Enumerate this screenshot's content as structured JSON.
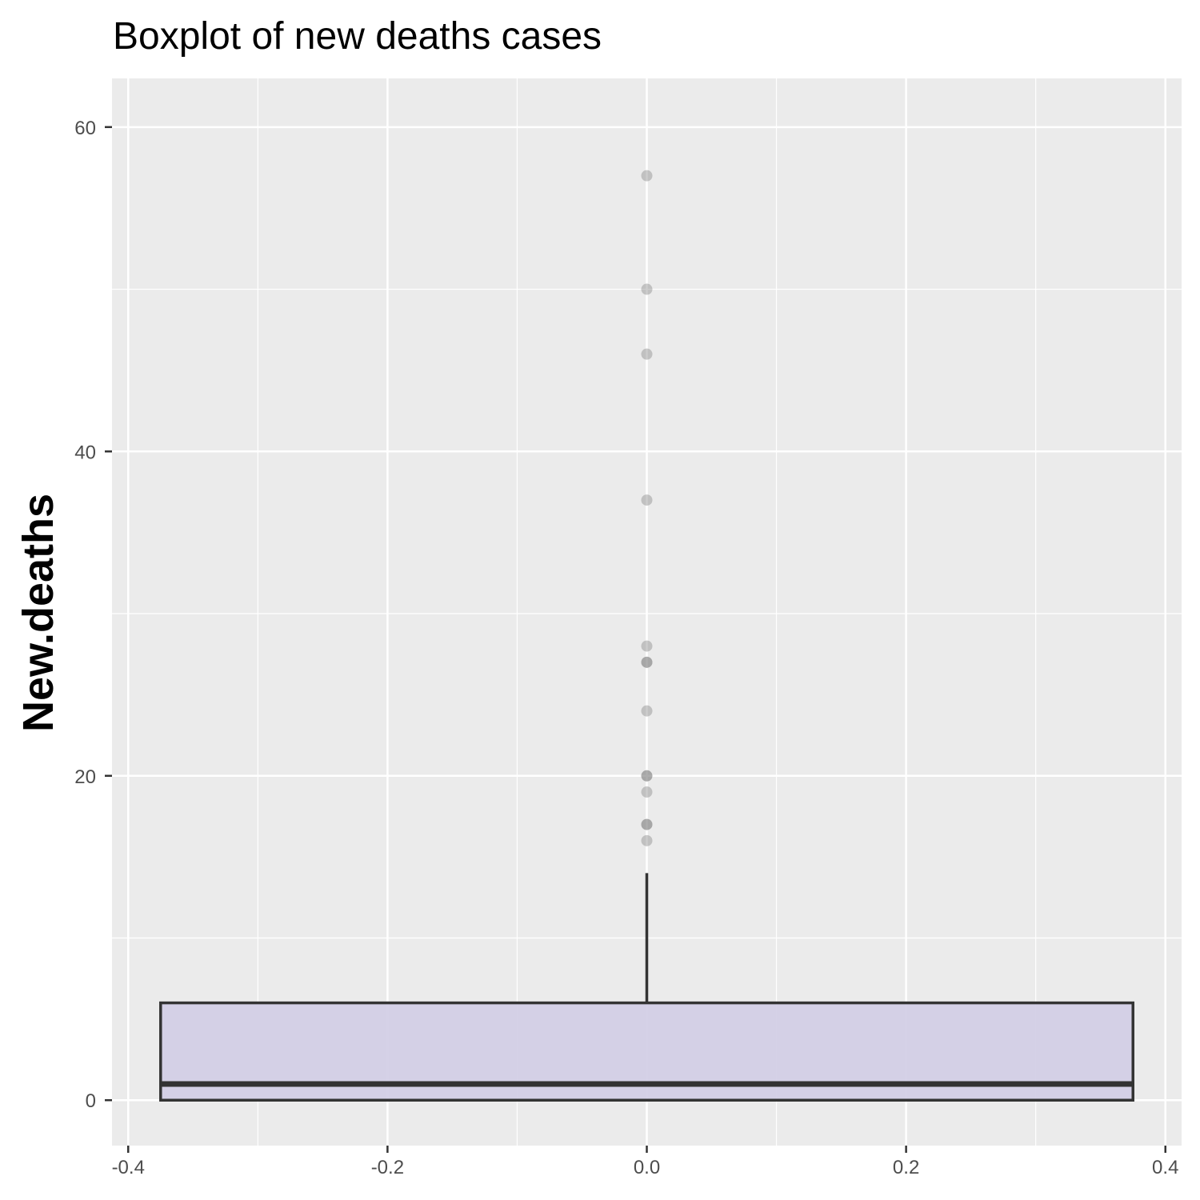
{
  "chart_data": {
    "type": "boxplot",
    "title": "Boxplot of new deaths cases",
    "xlabel": "",
    "ylabel": "New.deaths",
    "xlim": [
      -0.4125,
      0.4125
    ],
    "ylim": [
      -2.8,
      63
    ],
    "x_ticks": [
      -0.4,
      -0.2,
      0.0,
      0.2,
      0.4
    ],
    "x_tick_labels": [
      "-0.4",
      "-0.2",
      "0.0",
      "0.2",
      "0.4"
    ],
    "y_ticks": [
      0,
      20,
      40,
      60
    ],
    "y_tick_labels": [
      "0",
      "20",
      "40",
      "60"
    ],
    "grid": true,
    "box": {
      "x": 0,
      "xmin": -0.375,
      "xmax": 0.375,
      "lower_hinge": 0,
      "median": 1,
      "upper_hinge": 6,
      "whisker_low": 0,
      "whisker_high": 14,
      "fill": "#d3cfe6",
      "line_color": "#333333"
    },
    "outliers": [
      57,
      50,
      46,
      37,
      28,
      27,
      27,
      24,
      20,
      20,
      19,
      17,
      17,
      16
    ],
    "colors": {
      "panel_background": "#ebebeb",
      "grid_major": "#ffffff",
      "outlier": "#7f7f7f"
    }
  }
}
